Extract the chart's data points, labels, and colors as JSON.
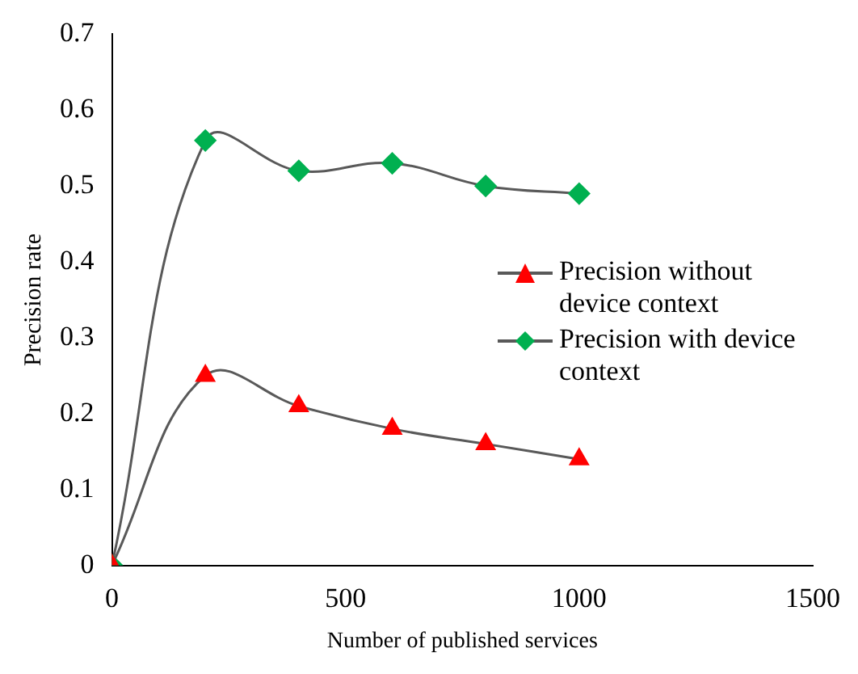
{
  "chart_data": {
    "type": "line",
    "xlabel": "Number of published services",
    "ylabel": "Precision rate",
    "xlim": [
      0,
      1500
    ],
    "xticks": [
      0,
      500,
      1000,
      1500
    ],
    "ylim": [
      0,
      0.7
    ],
    "yticks": [
      0,
      0.1,
      0.2,
      0.3,
      0.4,
      0.5,
      0.6,
      0.7
    ],
    "grid": false,
    "legend": "right",
    "series": [
      {
        "name": "Precision without device context",
        "color": "#ff0000",
        "marker": "triangle",
        "x": [
          0,
          200,
          400,
          600,
          800,
          1000
        ],
        "values": [
          0,
          0.25,
          0.21,
          0.18,
          0.16,
          0.14
        ]
      },
      {
        "name": "Precision with device context",
        "color": "#00b050",
        "marker": "diamond",
        "x": [
          0,
          200,
          400,
          600,
          800,
          1000
        ],
        "values": [
          0,
          0.56,
          0.52,
          0.53,
          0.5,
          0.49
        ]
      }
    ]
  }
}
